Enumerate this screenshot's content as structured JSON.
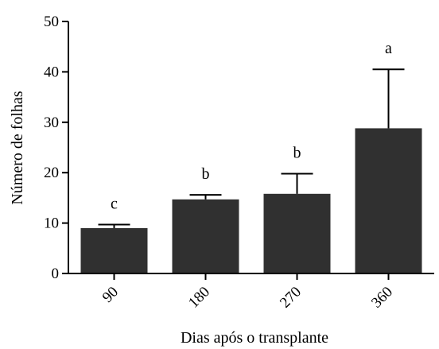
{
  "chart_data": {
    "type": "bar",
    "categories": [
      "90",
      "180",
      "270",
      "360"
    ],
    "values": [
      9,
      14.7,
      15.8,
      28.8
    ],
    "errors": [
      0.7,
      0.9,
      4.0,
      11.7
    ],
    "significance_letters": [
      "c",
      "b",
      "b",
      "a"
    ],
    "xlabel": "Dias após o transplante",
    "ylabel": "Número de folhas",
    "ylim": [
      0,
      50
    ],
    "yticks": [
      0,
      10,
      20,
      30,
      40,
      50
    ],
    "grid": false,
    "legend": "none",
    "bar_color": "#303030",
    "error_bar": "upper-only"
  }
}
